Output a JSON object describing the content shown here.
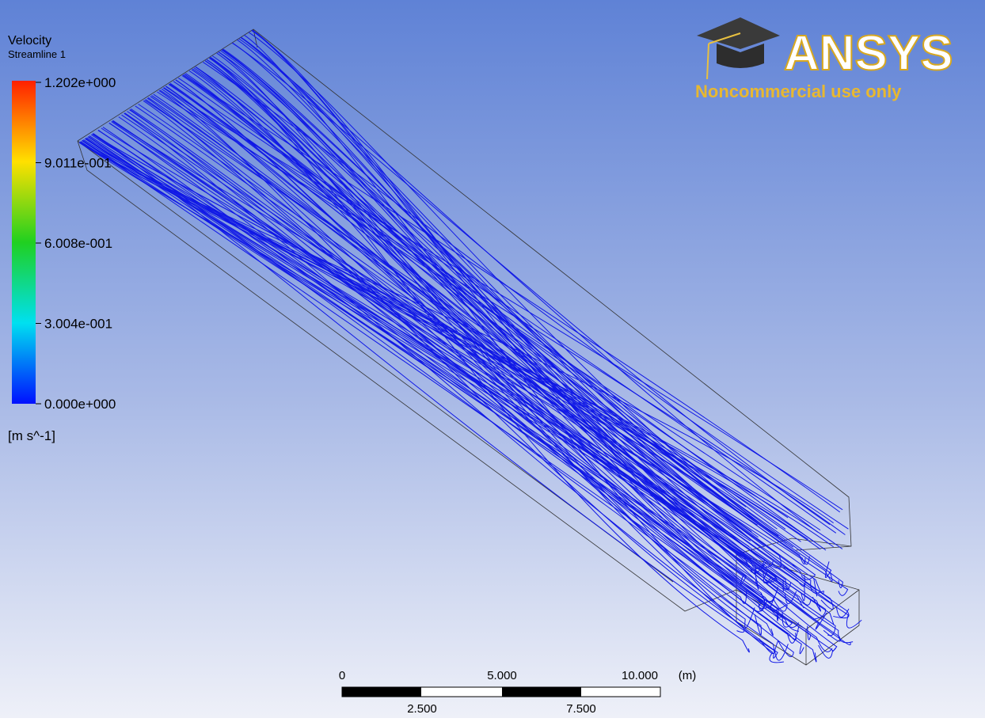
{
  "legend": {
    "title": "Velocity",
    "subtitle": "Streamline 1",
    "labels": [
      "1.202e+000",
      "9.011e-001",
      "6.008e-001",
      "3.004e-001",
      "0.000e+000"
    ],
    "unit": "[m s^-1]"
  },
  "logo": {
    "name": "ANSYS",
    "tagline": "Noncommercial use only"
  },
  "scale_bar": {
    "top_labels": [
      "0",
      "5.000",
      "10.000"
    ],
    "unit": "(m)",
    "bottom_labels": [
      "2.500",
      "7.500"
    ]
  }
}
